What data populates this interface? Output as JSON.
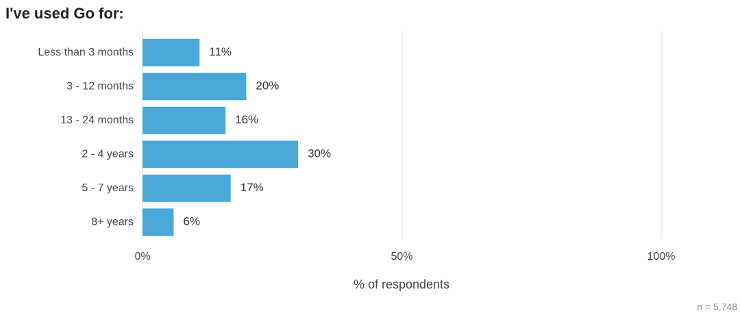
{
  "chart_data": {
    "type": "bar",
    "orientation": "horizontal",
    "title": "I've used Go for:",
    "categories": [
      "Less than 3 months",
      "3 - 12 months",
      "13 - 24 months",
      "2 - 4 years",
      "5 - 7 years",
      "8+ years"
    ],
    "values": [
      11,
      20,
      16,
      30,
      17,
      6
    ],
    "value_labels": [
      "11%",
      "20%",
      "16%",
      "30%",
      "17%",
      "6%"
    ],
    "color": "#4aa8d8",
    "xlim": [
      0,
      100
    ],
    "xticks": [
      {
        "value": 0,
        "label": "0%"
      },
      {
        "value": 50,
        "label": "50%"
      },
      {
        "value": 100,
        "label": "100%"
      }
    ],
    "xlabel": "% of respondents",
    "note": "n =  5,748",
    "grid": true
  }
}
